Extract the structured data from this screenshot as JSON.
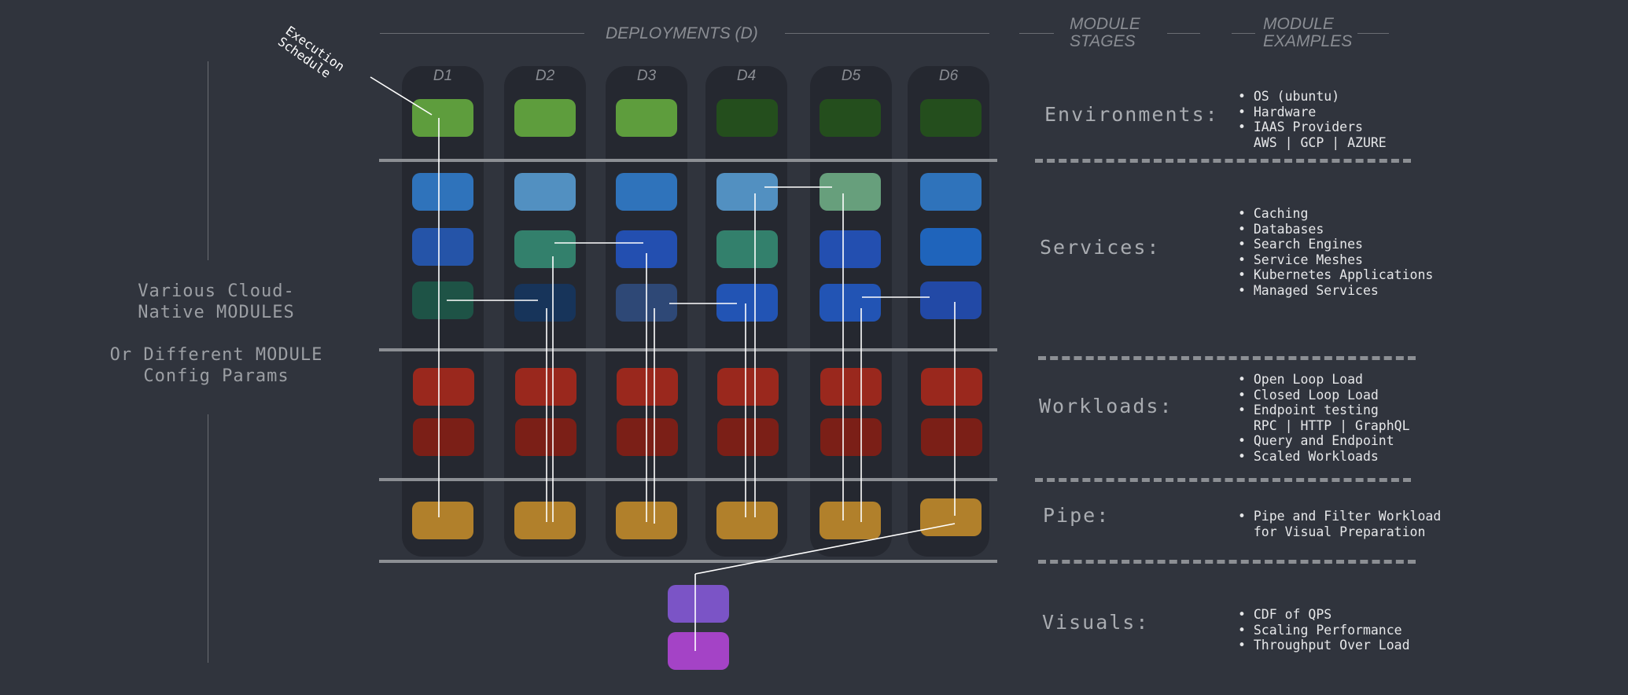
{
  "header": {
    "deployments": "DEPLOYMENTS (D)",
    "module_stages": "MODULE\nSTAGES",
    "module_examples": "MODULE\nEXAMPLES"
  },
  "execution_schedule": "Execution\nSchedule",
  "side_note": {
    "line1": "Various Cloud-",
    "line2": "Native MODULES",
    "line3": "Or Different MODULE",
    "line4": "Config Params"
  },
  "deployments": [
    "D1",
    "D2",
    "D3",
    "D4",
    "D5",
    "D6"
  ],
  "colors": {
    "env": [
      [
        "#5e9d3d"
      ],
      [
        "#5e9d3d"
      ],
      [
        "#5e9d3d"
      ],
      [
        "#244e1d"
      ],
      [
        "#244e1d"
      ],
      [
        "#244e1d"
      ]
    ],
    "services": [
      [
        "#2f73bb",
        "#2554a8",
        "#1e5346"
      ],
      [
        "#5290c1",
        "#33806c",
        "#17345a"
      ],
      [
        "#2f73bb",
        "#234fb0",
        "#2e4876"
      ],
      [
        "#5290c1",
        "#33806c",
        "#2254b4"
      ],
      [
        "#679f7c",
        "#234fb0",
        "#2254b4"
      ],
      [
        "#2f73bb",
        "#1f64bb",
        "#2249a6"
      ]
    ],
    "workloads": [
      [
        "#9a281d",
        "#7b1f17"
      ],
      [
        "#9a281d",
        "#7b1f17"
      ],
      [
        "#9a281d",
        "#7b1f17"
      ],
      [
        "#9a281d",
        "#7b1f17"
      ],
      [
        "#9a281d",
        "#7b1f17"
      ],
      [
        "#9a281d",
        "#7b1f17"
      ]
    ],
    "pipe": "#b1802b",
    "visuals": [
      "#7b54c6",
      "#a443c6"
    ],
    "line": "#ffffff",
    "background": "#30343d"
  },
  "stages": [
    {
      "name": "Environments:",
      "examples": [
        "• OS (ubuntu)",
        "• Hardware",
        "• IAAS Providers",
        "  AWS | GCP | AZURE"
      ]
    },
    {
      "name": "Services:",
      "examples": [
        "• Caching",
        "• Databases",
        "• Search Engines",
        "• Service Meshes",
        "• Kubernetes Applications",
        "• Managed Services"
      ]
    },
    {
      "name": "Workloads:",
      "examples": [
        "• Open Loop Load",
        "• Closed Loop Load",
        "• Endpoint testing",
        "  RPC | HTTP | GraphQL",
        "• Query and Endpoint",
        "• Scaled Workloads"
      ]
    },
    {
      "name": "Pipe:",
      "examples": [
        "• Pipe and Filter Workload",
        "  for Visual Preparation"
      ]
    },
    {
      "name": "Visuals:",
      "examples": [
        "• CDF of QPS",
        "• Scaling Performance",
        "• Throughput Over Load"
      ]
    }
  ]
}
